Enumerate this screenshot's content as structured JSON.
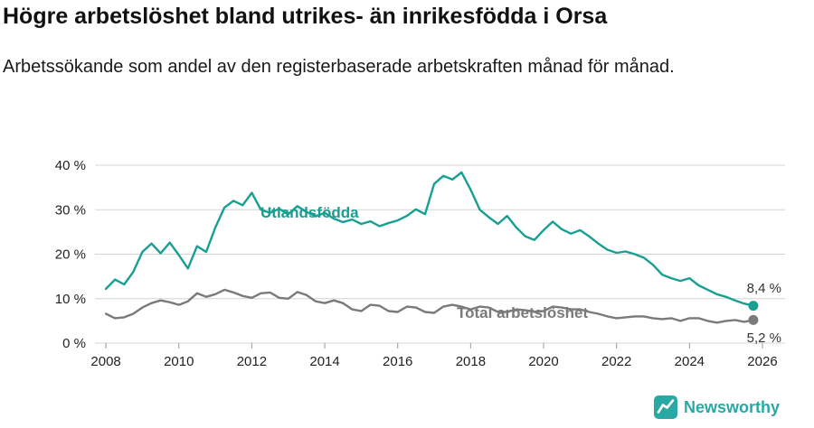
{
  "chart_data": {
    "type": "line",
    "title": "Högre arbetslöshet bland utrikes- än inrikesfödda i Orsa",
    "subtitle": "Arbetssökande som andel av den registerbaserade arbetskraften månad för månad.",
    "x_range": [
      2007.7,
      2026.62
    ],
    "y_range": [
      0,
      40
    ],
    "y_ticks": [
      0,
      10,
      20,
      30,
      40
    ],
    "y_tick_labels": [
      "0 %",
      "10 %",
      "20 %",
      "30 %",
      "40 %"
    ],
    "x_ticks": [
      2008,
      2010,
      2012,
      2014,
      2016,
      2018,
      2020,
      2022,
      2024,
      2026
    ],
    "x_tick_labels": [
      "2008",
      "2010",
      "2012",
      "2014",
      "2016",
      "2018",
      "2020",
      "2022",
      "2024",
      "2026"
    ],
    "grid": "horizontal",
    "legend": "inline-labels",
    "x": [
      2008,
      2008.25,
      2008.5,
      2008.75,
      2009,
      2009.25,
      2009.5,
      2009.75,
      2010,
      2010.25,
      2010.5,
      2010.75,
      2011,
      2011.25,
      2011.5,
      2011.75,
      2012,
      2012.25,
      2012.5,
      2012.75,
      2013,
      2013.25,
      2013.5,
      2013.75,
      2014,
      2014.25,
      2014.5,
      2014.75,
      2015,
      2015.25,
      2015.5,
      2015.75,
      2016,
      2016.25,
      2016.5,
      2016.75,
      2017,
      2017.25,
      2017.5,
      2017.75,
      2018,
      2018.25,
      2018.5,
      2018.75,
      2019,
      2019.25,
      2019.5,
      2019.75,
      2020,
      2020.25,
      2020.5,
      2020.75,
      2021,
      2021.25,
      2021.5,
      2021.75,
      2022,
      2022.25,
      2022.5,
      2022.75,
      2023,
      2023.25,
      2023.5,
      2023.75,
      2024,
      2024.25,
      2024.5,
      2024.75,
      2025,
      2025.25,
      2025.5,
      2025.75
    ],
    "series": [
      {
        "id": "utlandsfodda",
        "name": "Utlandsfödda",
        "color": "#17a092",
        "end_label": "8,4 %",
        "end_value": 8.4,
        "values": [
          12.2,
          14.3,
          13.2,
          16.0,
          20.5,
          22.4,
          20.2,
          22.6,
          19.8,
          16.8,
          21.8,
          20.5,
          26.0,
          30.5,
          32.0,
          31.0,
          33.8,
          30.0,
          29.3,
          30.2,
          29.0,
          30.8,
          29.5,
          28.5,
          29.3,
          28.0,
          27.2,
          27.8,
          26.8,
          27.4,
          26.3,
          27.0,
          27.6,
          28.6,
          30.1,
          29.0,
          35.8,
          37.6,
          36.8,
          38.4,
          34.5,
          30.0,
          28.3,
          26.8,
          28.6,
          26.0,
          24.0,
          23.2,
          25.4,
          27.3,
          25.6,
          24.6,
          25.4,
          24.0,
          22.4,
          21.0,
          20.3,
          20.6,
          20.0,
          19.2,
          17.6,
          15.4,
          14.6,
          14.0,
          14.6,
          13.0,
          12.0,
          11.0,
          10.4,
          9.6,
          8.9,
          8.4
        ]
      },
      {
        "id": "total",
        "name": "Total arbetslöshet",
        "color": "#7a7a7a",
        "end_label": "5,2 %",
        "end_value": 5.2,
        "values": [
          6.6,
          5.6,
          5.8,
          6.6,
          8.0,
          9.0,
          9.6,
          9.2,
          8.6,
          9.4,
          11.2,
          10.4,
          11.0,
          12.0,
          11.4,
          10.6,
          10.2,
          11.2,
          11.4,
          10.2,
          10.0,
          11.5,
          10.8,
          9.4,
          9.0,
          9.6,
          9.0,
          7.6,
          7.2,
          8.6,
          8.4,
          7.2,
          7.0,
          8.2,
          8.0,
          7.0,
          6.8,
          8.2,
          8.6,
          8.2,
          7.6,
          8.2,
          8.0,
          7.0,
          7.0,
          7.6,
          7.4,
          7.0,
          7.2,
          8.2,
          8.0,
          7.6,
          7.6,
          7.0,
          6.6,
          6.0,
          5.6,
          5.8,
          6.0,
          6.0,
          5.6,
          5.4,
          5.6,
          5.0,
          5.6,
          5.6,
          5.0,
          4.6,
          5.0,
          5.2,
          4.8,
          5.2
        ]
      }
    ]
  },
  "footer": {
    "brand": "Newsworthy",
    "brand_color": "#2aa9a4"
  }
}
